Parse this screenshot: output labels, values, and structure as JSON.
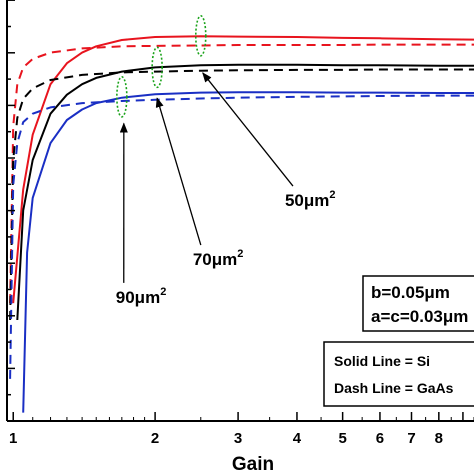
{
  "chart_data": {
    "type": "line",
    "xlabel": "Gain",
    "x_scale": "log",
    "xlim": [
      0.97,
      9.5
    ],
    "ylim": [
      0,
      1
    ],
    "x_ticks": [
      "1",
      "2",
      "3",
      "4",
      "5",
      "6",
      "7",
      "8"
    ],
    "grid": false,
    "colors": {
      "red": "#e8141e",
      "black": "#000000",
      "blue": "#1a2fc4",
      "ellipse": "#1aa31a"
    },
    "series": [
      {
        "color": "red",
        "style": "solid",
        "x": [
          1.0,
          1.05,
          1.1,
          1.2,
          1.3,
          1.4,
          1.5,
          1.7,
          2.0,
          2.5,
          3.0,
          4.0,
          5.0,
          6.0,
          8.0,
          9.5
        ],
        "y": [
          0.28,
          0.55,
          0.68,
          0.8,
          0.85,
          0.875,
          0.89,
          0.905,
          0.912,
          0.914,
          0.913,
          0.912,
          0.91,
          0.909,
          0.907,
          0.906
        ]
      },
      {
        "color": "red",
        "style": "dash",
        "x": [
          0.985,
          1.0,
          1.02,
          1.05,
          1.1,
          1.2,
          1.4,
          1.7,
          2.0,
          2.5,
          3.0,
          4.0,
          5.0,
          6.0,
          8.0,
          9.5
        ],
        "y": [
          0.28,
          0.7,
          0.8,
          0.84,
          0.86,
          0.875,
          0.885,
          0.89,
          0.891,
          0.892,
          0.893,
          0.893,
          0.893,
          0.894,
          0.894,
          0.894
        ]
      },
      {
        "color": "black",
        "style": "solid",
        "x": [
          1.02,
          1.05,
          1.1,
          1.2,
          1.3,
          1.4,
          1.5,
          1.7,
          2.0,
          2.5,
          3.0,
          4.0,
          5.0,
          6.0,
          8.0,
          9.5
        ],
        "y": [
          0.24,
          0.5,
          0.62,
          0.73,
          0.775,
          0.8,
          0.815,
          0.83,
          0.84,
          0.845,
          0.846,
          0.846,
          0.845,
          0.845,
          0.844,
          0.844
        ]
      },
      {
        "color": "black",
        "style": "dash",
        "x": [
          0.985,
          1.0,
          1.02,
          1.05,
          1.1,
          1.2,
          1.4,
          1.7,
          2.0,
          2.5,
          3.0,
          4.0,
          5.0,
          6.0,
          8.0,
          9.5
        ],
        "y": [
          0.24,
          0.62,
          0.72,
          0.765,
          0.79,
          0.81,
          0.822,
          0.828,
          0.83,
          0.832,
          0.833,
          0.834,
          0.834,
          0.835,
          0.835,
          0.835
        ]
      },
      {
        "color": "blue",
        "style": "solid",
        "x": [
          1.05,
          1.07,
          1.1,
          1.2,
          1.3,
          1.4,
          1.5,
          1.7,
          2.0,
          2.5,
          3.0,
          4.0,
          5.0,
          6.0,
          8.0,
          9.5
        ],
        "y": [
          0.02,
          0.4,
          0.53,
          0.66,
          0.715,
          0.74,
          0.755,
          0.768,
          0.776,
          0.78,
          0.781,
          0.781,
          0.78,
          0.78,
          0.779,
          0.779
        ]
      },
      {
        "color": "blue",
        "style": "dash",
        "x": [
          0.985,
          1.0,
          1.02,
          1.05,
          1.1,
          1.2,
          1.4,
          1.7,
          2.0,
          2.5,
          3.0,
          4.0,
          5.0,
          6.0,
          8.0,
          9.5
        ],
        "y": [
          0.1,
          0.56,
          0.66,
          0.71,
          0.73,
          0.745,
          0.755,
          0.76,
          0.763,
          0.766,
          0.768,
          0.77,
          0.771,
          0.772,
          0.773,
          0.773
        ]
      }
    ],
    "annotations": [
      {
        "label": "50μm",
        "sup": "2",
        "x": 4.0,
        "y": 0.52,
        "arrow_to": [
          2.5,
          0.86
        ]
      },
      {
        "label": "70μm",
        "sup": "2",
        "x": 2.55,
        "y": 0.38,
        "arrow_to": [
          2.0,
          0.8
        ]
      },
      {
        "label": "90μm",
        "sup": "2",
        "x": 1.75,
        "y": 0.29,
        "arrow_to": [
          1.7,
          0.74
        ]
      }
    ],
    "ellipses": [
      {
        "x": 2.5,
        "y": 0.915,
        "w": 5,
        "h": 20
      },
      {
        "x": 2.02,
        "y": 0.84,
        "w": 5,
        "h": 20
      },
      {
        "x": 1.7,
        "y": 0.77,
        "w": 5,
        "h": 20
      }
    ],
    "params_box": {
      "lines": [
        "b=0.05μm",
        "a=c=0.03μm"
      ]
    },
    "legend_box": {
      "lines": [
        "Solid Line = Si",
        "Dash Line = GaAs"
      ]
    }
  }
}
